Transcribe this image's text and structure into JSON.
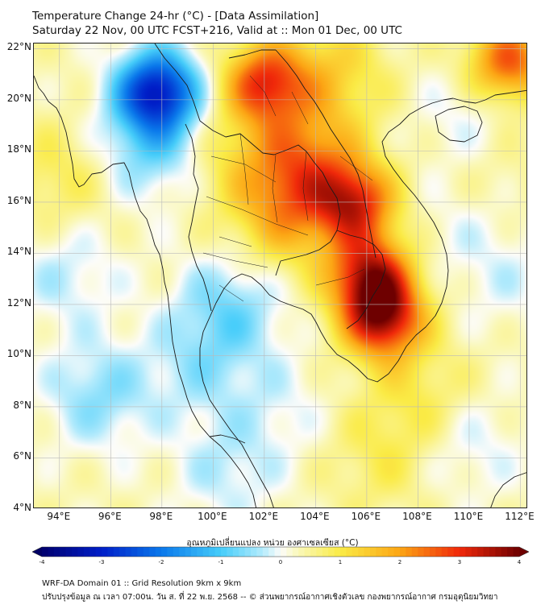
{
  "header": {
    "title": "Temperature Change 24-hr (°C) - [Data Assimilation]",
    "subtitle": "Saturday 22 Nov, 00 UTC FCST+216, Valid at :: Mon 01 Dec, 00 UTC"
  },
  "map": {
    "lat_labels": [
      "22°N",
      "20°N",
      "18°N",
      "16°N",
      "14°N",
      "12°N",
      "10°N",
      "8°N",
      "6°N",
      "4°N"
    ],
    "lon_labels": [
      "94°E",
      "96°E",
      "98°E",
      "100°E",
      "102°E",
      "104°E",
      "106°E",
      "108°E",
      "110°E",
      "112°E"
    ],
    "lat_range": [
      4,
      22.2
    ],
    "lon_range": [
      93,
      112.3
    ],
    "lat_values": [
      22,
      20,
      18,
      16,
      14,
      12,
      10,
      8,
      6,
      4
    ],
    "lon_values": [
      94,
      96,
      98,
      100,
      102,
      104,
      106,
      108,
      110,
      112
    ]
  },
  "colorbar": {
    "label": "อุณหภูมิเปลี่ยนแปลง หน่วย องศาเซลเซียส (°C)",
    "tick_labels": [
      "-4",
      "-3",
      "-2",
      "-1",
      "0",
      "1",
      "2",
      "3",
      "4"
    ],
    "tick_values": [
      -4,
      -3,
      -2,
      -1,
      0,
      1,
      2,
      3,
      4
    ],
    "range": [
      -4,
      4
    ]
  },
  "footer": {
    "line1": "WRF-DA Domain 01 :: Grid Resolution 9km x 9km",
    "line2": "ปรับปรุงข้อมูล ณ เวลา 07:00น. วัน ส. ที่ 22 พ.ย. 2568 -- © ส่วนพยากรณ์อากาศเชิงตัวเลข กองพยากรณ์อากาศ กรมอุตุนิยมวิทยา"
  },
  "field_features": [
    {
      "name": "cold-core-myanmar",
      "lon": 97.8,
      "lat": 20.4,
      "value": -3.2
    },
    {
      "name": "cold-myanmar-west",
      "lon": 97.6,
      "lat": 18.3,
      "value": -1.2
    },
    {
      "name": "cold-south",
      "lon": 100.6,
      "lat": 11.9,
      "value": -1.0
    },
    {
      "name": "cold-andaman",
      "lon": 95.5,
      "lat": 8.5,
      "value": -0.9
    },
    {
      "name": "cold-gulf",
      "lon": 99.4,
      "lat": 9.5,
      "value": -0.6
    },
    {
      "name": "cold-westsea",
      "lon": 94.2,
      "lat": 13.2,
      "value": -0.6
    },
    {
      "name": "warm-laos-north",
      "lon": 102.0,
      "lat": 20.7,
      "value": 2.4
    },
    {
      "name": "warm-laos-mid",
      "lon": 103.5,
      "lat": 17.6,
      "value": 1.7
    },
    {
      "name": "warm-vietnam",
      "lon": 105.5,
      "lat": 16.0,
      "value": 2.5
    },
    {
      "name": "warm-cambodia",
      "lon": 106.1,
      "lat": 13.2,
      "value": 2.8
    },
    {
      "name": "warm-core",
      "lon": 106.6,
      "lat": 11.5,
      "value": 3.1
    },
    {
      "name": "warm-china-ne",
      "lon": 111.5,
      "lat": 21.5,
      "value": 2.3
    },
    {
      "name": "warm-yunnan",
      "lon": 104.5,
      "lat": 21.0,
      "value": 1.0
    },
    {
      "name": "warm-thai-north",
      "lon": 100.5,
      "lat": 18.0,
      "value": 0.6
    },
    {
      "name": "warm-thai-east",
      "lon": 102.8,
      "lat": 15.5,
      "value": 1.3
    },
    {
      "name": "warm-se-sea",
      "lon": 108.0,
      "lat": 8.5,
      "value": 0.6
    },
    {
      "name": "warm-sea-south",
      "lon": 106.5,
      "lat": 6.0,
      "value": 0.5
    },
    {
      "name": "warm-bay-sw",
      "lon": 94.0,
      "lat": 17.0,
      "value": 0.6
    },
    {
      "name": "warm-hainan-e",
      "lon": 111.0,
      "lat": 17.5,
      "value": 0.3
    },
    {
      "name": "cool-hainan",
      "lon": 110.0,
      "lat": 19.3,
      "value": -0.5
    },
    {
      "name": "cool-sea-east",
      "lon": 111.5,
      "lat": 13.0,
      "value": -0.4
    },
    {
      "name": "cool-sea-mid",
      "lon": 109.5,
      "lat": 15.0,
      "value": -0.3
    },
    {
      "name": "cool-lower-sea",
      "lon": 110.0,
      "lat": 6.5,
      "value": -0.5
    },
    {
      "name": "cool-malaya",
      "lon": 100.5,
      "lat": 5.5,
      "value": -0.6
    },
    {
      "name": "cool-gulf-south",
      "lon": 102.5,
      "lat": 8.0,
      "value": -0.4
    }
  ]
}
